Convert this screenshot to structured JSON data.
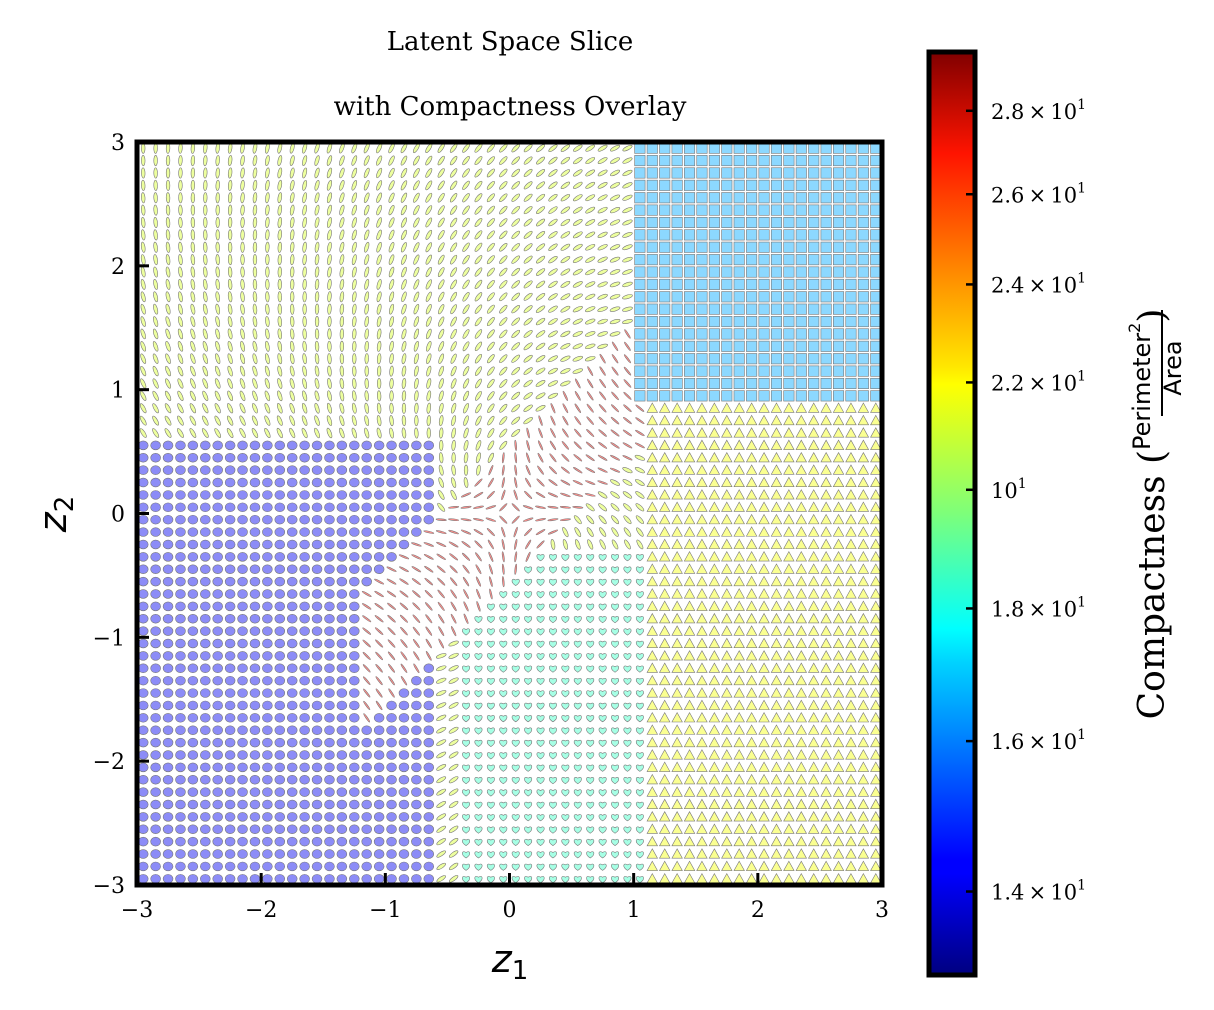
{
  "chart_data": {
    "type": "heatmap",
    "title": "Latent Space Slice",
    "subtitle": "with Compactness Overlay",
    "xlabel": "z",
    "xlabel_sub": "1",
    "ylabel": "z",
    "ylabel_sub": "2",
    "xlim": [
      -3,
      3
    ],
    "ylim": [
      -3,
      3
    ],
    "xticks": [
      -3,
      -2,
      -1,
      0,
      1,
      2,
      3
    ],
    "yticks": [
      -3,
      -2,
      -1,
      0,
      1,
      2,
      3
    ],
    "xtick_labels": [
      "−3",
      "−2",
      "−1",
      "0",
      "1",
      "2",
      "3"
    ],
    "ytick_labels": [
      "−3",
      "−2",
      "−1",
      "0",
      "1",
      "2",
      "3"
    ],
    "grid": false,
    "grid_points": 60,
    "colormap": "jet",
    "colorbar": {
      "label_prefix": "Compactness (",
      "label_numerator": "Perimeter",
      "label_exponent": "2",
      "label_denominator": "Area",
      "label_suffix": ")",
      "scale": "log",
      "range": [
        13,
        29.5
      ],
      "ticks": [
        14,
        16,
        18,
        20,
        22,
        24,
        26,
        28
      ],
      "tick_mantissas": [
        "1.4",
        "1.6",
        "1.8",
        "",
        "2.2",
        "2.4",
        "2.6",
        "2.8"
      ],
      "tick_base": "10",
      "tick_exponent": "1",
      "placement": "right"
    },
    "regions": [
      {
        "name": "top-right",
        "shape": "square",
        "compactness": 16.5
      },
      {
        "name": "lower-right",
        "shape": "triangle",
        "compactness": 21.5
      },
      {
        "name": "left",
        "shape": "circle",
        "compactness": 14.2
      },
      {
        "name": "upper-left",
        "shape": "ellipse",
        "compactness": 21.0
      },
      {
        "name": "bottom-center",
        "shape": "heart",
        "compactness": 18.5
      },
      {
        "name": "center-diagonal",
        "shape": "line",
        "compactness": 26.5
      }
    ]
  }
}
